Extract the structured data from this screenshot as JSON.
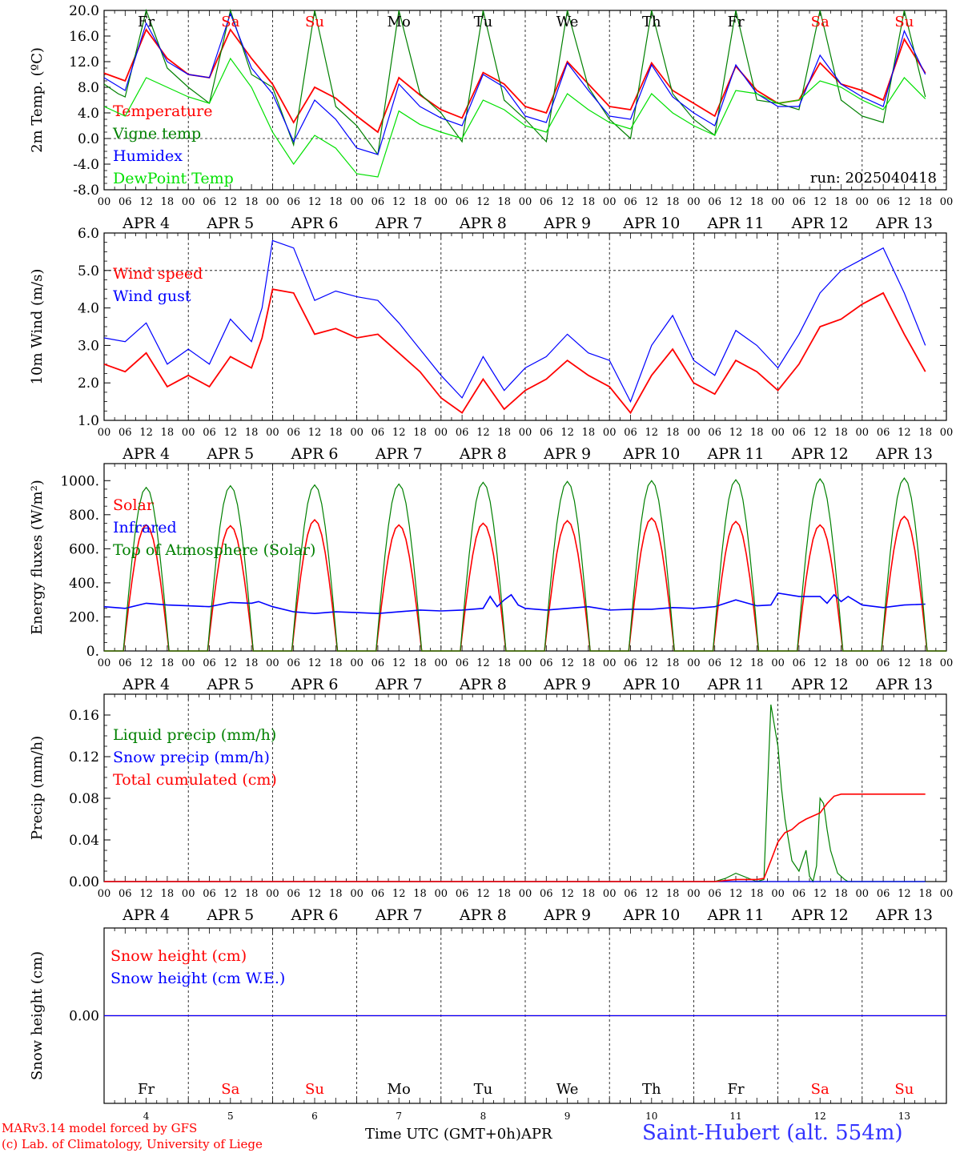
{
  "days": [
    {
      "abbr": "Fr",
      "date_label": "APR  4",
      "day_num": "4",
      "color": "#000000"
    },
    {
      "abbr": "Sa",
      "date_label": "APR  5",
      "day_num": "5",
      "color": "#ff0000"
    },
    {
      "abbr": "Su",
      "date_label": "APR  6",
      "day_num": "6",
      "color": "#ff0000"
    },
    {
      "abbr": "Mo",
      "date_label": "APR  7",
      "day_num": "7",
      "color": "#000000"
    },
    {
      "abbr": "Tu",
      "date_label": "APR  8",
      "day_num": "8",
      "color": "#000000"
    },
    {
      "abbr": "We",
      "date_label": "APR  9",
      "day_num": "9",
      "color": "#000000"
    },
    {
      "abbr": "Th",
      "date_label": "APR 10",
      "day_num": "10",
      "color": "#000000"
    },
    {
      "abbr": "Fr",
      "date_label": "APR 11",
      "day_num": "11",
      "color": "#000000"
    },
    {
      "abbr": "Sa",
      "date_label": "APR 12",
      "day_num": "12",
      "color": "#ff0000"
    },
    {
      "abbr": "Su",
      "date_label": "APR 13",
      "day_num": "13",
      "color": "#ff0000"
    }
  ],
  "hour_ticks": [
    "00",
    "06",
    "12",
    "18"
  ],
  "hour_end_label": "00",
  "footer": {
    "credit_line1": "MARv3.14 model forced by GFS",
    "credit_line2": "(c) Lab. of Climatology, University of Liege",
    "xaxis_label": "Time UTC (GMT+0h)",
    "month": "APR",
    "station": "Saint-Hubert (alt. 554m)"
  },
  "colors": {
    "red": "#ff0000",
    "green": "#008000",
    "blue": "#0000ff",
    "light_green": "#00e000",
    "axis": "#000000"
  },
  "chart_data": [
    {
      "type": "line",
      "ylabel": "2m Temp. (ºC)",
      "ylim": [
        -8,
        20
      ],
      "yticks": [
        "20.0",
        "16.0",
        "12.0",
        "8.0",
        "4.0",
        "0.0",
        "-4.0",
        "-8.0"
      ],
      "ref_line": 0,
      "annotation": "run: 2025040418",
      "x_unit": "hours since APR 4 00 UTC",
      "series": [
        {
          "name": "Temperature",
          "color": "#ff0000",
          "width": 1.8,
          "x": [
            0,
            6,
            12,
            18,
            24,
            30,
            36,
            42,
            48,
            54,
            60,
            66,
            72,
            78,
            84,
            90,
            96,
            102,
            108,
            114,
            120,
            126,
            132,
            138,
            144,
            150,
            156,
            162,
            168,
            174,
            180,
            186,
            192,
            198,
            204,
            210,
            216,
            222,
            228,
            234
          ],
          "y": [
            10.2,
            9,
            17,
            12.5,
            10,
            9.5,
            17,
            12.5,
            8.5,
            2.5,
            8,
            6.3,
            3.5,
            1,
            9.5,
            6.8,
            4.5,
            3.2,
            10.3,
            8.5,
            5,
            4,
            12,
            8.5,
            5,
            4.5,
            11.8,
            7.5,
            5.5,
            3.5,
            11.3,
            7.5,
            5.5,
            6,
            11.8,
            8.5,
            7.5,
            6,
            15.5,
            10.2
          ]
        },
        {
          "name": "Vigne temp",
          "color": "#008000",
          "width": 1.2,
          "x": [
            0,
            4,
            6,
            12,
            18,
            24,
            30,
            36,
            42,
            48,
            54,
            60,
            66,
            72,
            78,
            84,
            90,
            96,
            102,
            108,
            114,
            120,
            126,
            132,
            138,
            144,
            150,
            156,
            162,
            168,
            174,
            180,
            186,
            192,
            198,
            204,
            210,
            216,
            222,
            228,
            234
          ],
          "y": [
            8.5,
            7,
            6.5,
            20,
            11,
            8,
            5.5,
            20,
            10,
            8,
            -1,
            20,
            5,
            2,
            -2.5,
            20,
            7,
            4,
            -0.5,
            20,
            6,
            3,
            -0.5,
            20,
            8,
            3,
            0,
            20,
            7,
            3,
            0.5,
            20,
            6,
            5.5,
            4.5,
            20,
            6,
            3.5,
            2.5,
            20,
            6.5
          ]
        },
        {
          "name": "Humidex",
          "color": "#0000ff",
          "width": 1.2,
          "x": [
            0,
            6,
            12,
            18,
            24,
            30,
            36,
            42,
            48,
            54,
            60,
            66,
            72,
            78,
            84,
            90,
            96,
            102,
            108,
            114,
            120,
            126,
            132,
            138,
            144,
            150,
            156,
            162,
            168,
            174,
            180,
            186,
            192,
            198,
            204,
            210,
            216,
            222,
            228,
            234
          ],
          "y": [
            9.5,
            7.5,
            18,
            12,
            10,
            9.5,
            19.5,
            11,
            7,
            -0.5,
            6,
            3,
            -1.5,
            -2.5,
            8.5,
            5,
            3.2,
            2,
            10,
            8,
            3.5,
            2.5,
            11.8,
            7.5,
            3.5,
            3,
            11.5,
            6.5,
            4,
            2,
            11.5,
            7,
            5,
            5,
            13,
            8.5,
            6.5,
            5,
            16.8,
            10
          ]
        },
        {
          "name": "DewPoint Temp",
          "color": "#00e000",
          "width": 1.2,
          "x": [
            0,
            6,
            12,
            18,
            24,
            30,
            36,
            42,
            48,
            54,
            60,
            66,
            72,
            78,
            84,
            90,
            96,
            102,
            108,
            114,
            120,
            126,
            132,
            138,
            144,
            150,
            156,
            162,
            168,
            174,
            180,
            186,
            192,
            198,
            204,
            210,
            216,
            222,
            228,
            234
          ],
          "y": [
            5,
            3.5,
            9.5,
            8,
            6.5,
            5.5,
            12.5,
            8,
            1,
            -4,
            0.5,
            -1.5,
            -5.5,
            -6,
            4.3,
            2.2,
            1,
            0,
            6,
            4.5,
            2,
            1,
            7,
            4.5,
            2.5,
            1.5,
            7,
            4,
            2,
            0.5,
            7.5,
            7,
            5.5,
            6,
            9,
            8,
            6,
            4.5,
            9.5,
            6.2
          ]
        }
      ]
    },
    {
      "type": "line",
      "ylabel": "10m Wind (m/s)",
      "ylim": [
        1,
        6
      ],
      "yticks": [
        "6.0",
        "5.0",
        "4.0",
        "3.0",
        "2.0",
        "1.0"
      ],
      "ref_line": 5,
      "series": [
        {
          "name": "Wind speed",
          "color": "#ff0000",
          "width": 1.8,
          "x": [
            0,
            6,
            12,
            18,
            24,
            30,
            36,
            42,
            45,
            48,
            54,
            60,
            66,
            72,
            78,
            84,
            90,
            96,
            102,
            108,
            114,
            120,
            126,
            132,
            138,
            144,
            150,
            156,
            162,
            168,
            174,
            180,
            186,
            192,
            198,
            204,
            210,
            216,
            222,
            228,
            234
          ],
          "y": [
            2.5,
            2.3,
            2.8,
            1.9,
            2.2,
            1.9,
            2.7,
            2.4,
            3.2,
            4.5,
            4.4,
            3.3,
            3.45,
            3.2,
            3.3,
            2.8,
            2.3,
            1.6,
            1.2,
            2.1,
            1.3,
            1.8,
            2.1,
            2.6,
            2.2,
            1.9,
            1.2,
            2.2,
            2.9,
            2,
            1.7,
            2.6,
            2.3,
            1.8,
            2.5,
            3.5,
            3.7,
            4.1,
            4.4,
            3.3,
            2.3
          ]
        },
        {
          "name": "Wind gust",
          "color": "#0000ff",
          "width": 1.2,
          "x": [
            0,
            6,
            12,
            18,
            24,
            30,
            36,
            42,
            45,
            48,
            54,
            60,
            66,
            72,
            78,
            84,
            90,
            96,
            102,
            108,
            114,
            120,
            126,
            132,
            138,
            144,
            150,
            156,
            162,
            168,
            174,
            180,
            186,
            192,
            198,
            204,
            210,
            216,
            222,
            228,
            234
          ],
          "y": [
            3.2,
            3.1,
            3.6,
            2.5,
            2.9,
            2.5,
            3.7,
            3.1,
            4.0,
            5.8,
            5.6,
            4.2,
            4.45,
            4.3,
            4.2,
            3.6,
            2.9,
            2.2,
            1.6,
            2.7,
            1.8,
            2.4,
            2.7,
            3.3,
            2.8,
            2.6,
            1.5,
            3.0,
            3.8,
            2.6,
            2.2,
            3.4,
            3.0,
            2.4,
            3.3,
            4.4,
            5.0,
            5.3,
            5.6,
            4.4,
            3.0
          ]
        }
      ]
    },
    {
      "type": "line",
      "ylabel": "Energy fluxes (W/m²)",
      "ylim": [
        0,
        1100
      ],
      "yticks": [
        "1000.",
        "800.",
        "600.",
        "400.",
        "200.",
        "0."
      ],
      "series": [
        {
          "name": "Solar",
          "color": "#ff0000",
          "width": 1.6,
          "kind": "diurnal",
          "peaks": [
            740,
            735,
            770,
            740,
            750,
            765,
            780,
            760,
            740,
            790
          ]
        },
        {
          "name": "Infrared",
          "color": "#0000ff",
          "width": 1.6,
          "x": [
            0,
            6,
            12,
            18,
            24,
            30,
            36,
            42,
            44,
            48,
            54,
            60,
            66,
            72,
            78,
            84,
            90,
            96,
            102,
            108,
            110,
            112,
            114,
            116,
            118,
            120,
            126,
            132,
            138,
            144,
            150,
            156,
            162,
            168,
            174,
            180,
            186,
            190,
            192,
            198,
            204,
            206,
            208,
            210,
            212,
            216,
            222,
            228,
            234
          ],
          "y": [
            260,
            250,
            280,
            270,
            265,
            260,
            285,
            280,
            290,
            260,
            230,
            220,
            230,
            225,
            220,
            230,
            240,
            235,
            240,
            250,
            320,
            260,
            300,
            330,
            270,
            250,
            240,
            250,
            260,
            240,
            245,
            245,
            255,
            250,
            260,
            300,
            265,
            270,
            340,
            320,
            320,
            280,
            330,
            290,
            320,
            270,
            255,
            270,
            275
          ]
        },
        {
          "name": "Top of Atmosphere (Solar)",
          "color": "#008000",
          "width": 1.2,
          "kind": "diurnal",
          "peaks": [
            960,
            970,
            975,
            980,
            990,
            995,
            1000,
            1005,
            1010,
            1015
          ]
        }
      ]
    },
    {
      "type": "line",
      "ylabel": "Precip (mm/h)",
      "ylim": [
        0,
        0.18
      ],
      "yticks": [
        "0.16",
        "0.12",
        "0.08",
        "0.04",
        "0.00"
      ],
      "series": [
        {
          "name": "Liquid precip (mm/h)",
          "color": "#008000",
          "width": 1.2,
          "x": [
            0,
            174,
            177,
            180,
            186,
            188,
            190,
            192,
            193,
            194,
            196,
            198,
            200,
            201,
            202,
            203,
            204,
            205,
            206,
            207,
            209,
            211,
            212,
            214,
            234
          ],
          "y": [
            0,
            0,
            0.003,
            0.008,
            0,
            0.002,
            0.17,
            0.13,
            0.09,
            0.06,
            0.02,
            0.01,
            0.03,
            0.005,
            0,
            0.015,
            0.08,
            0.075,
            0.05,
            0.03,
            0.008,
            0.002,
            0,
            0,
            0
          ]
        },
        {
          "name": "Snow precip (mm/h)",
          "color": "#0000ff",
          "width": 1.2,
          "x": [
            0,
            234
          ],
          "y": [
            0,
            0
          ]
        },
        {
          "name": "Total cumulated (cm)",
          "color": "#ff0000",
          "width": 1.6,
          "x": [
            0,
            174,
            177,
            180,
            186,
            188,
            190,
            192,
            194,
            196,
            198,
            200,
            202,
            204,
            206,
            208,
            210,
            212,
            234
          ],
          "y": [
            0,
            0,
            0.001,
            0.002,
            0.002,
            0.003,
            0.02,
            0.038,
            0.047,
            0.05,
            0.056,
            0.06,
            0.063,
            0.066,
            0.075,
            0.082,
            0.084,
            0.084,
            0.084
          ]
        }
      ]
    },
    {
      "type": "line",
      "ylabel": "Snow height (cm)",
      "ylim": [
        -0.01,
        0.01
      ],
      "yticks": [
        "0.00"
      ],
      "series": [
        {
          "name": "Snow height (cm)",
          "color": "#ff0000",
          "width": 1.2,
          "x": [
            0,
            240
          ],
          "y": [
            0,
            0
          ]
        },
        {
          "name": "Snow height (cm W.E.)",
          "color": "#0000ff",
          "width": 1.2,
          "x": [
            0,
            240
          ],
          "y": [
            0,
            0
          ]
        }
      ]
    }
  ]
}
